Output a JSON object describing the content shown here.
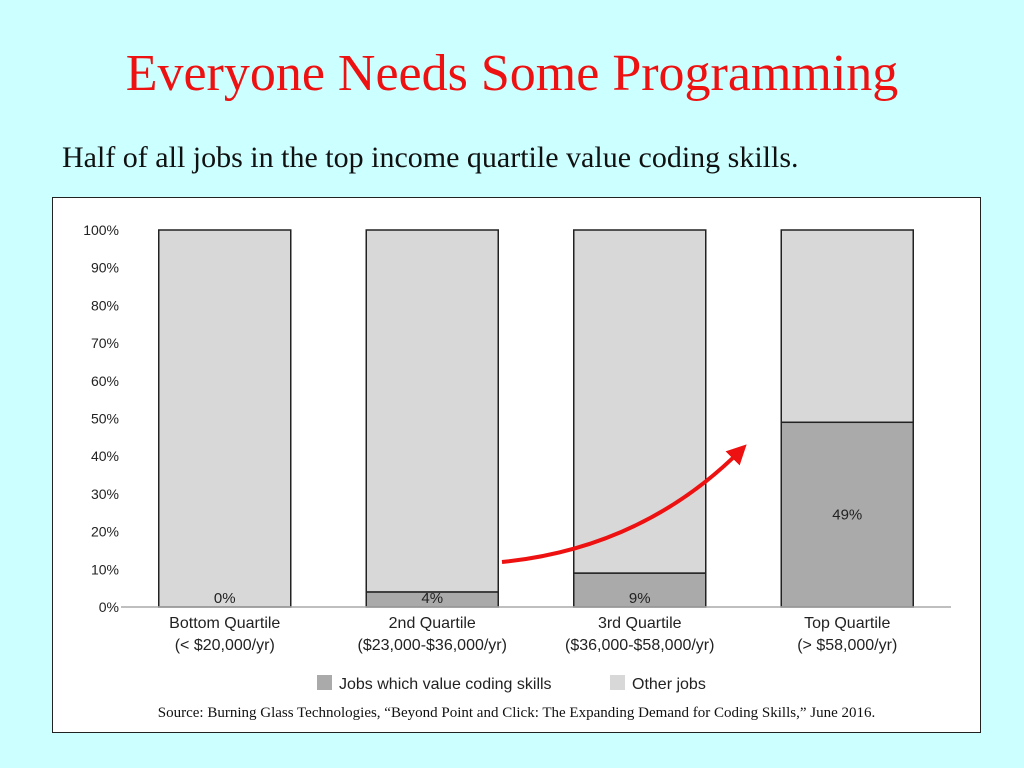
{
  "slide": {
    "title": "Everyone Needs Some Programming",
    "subtitle": "Half of all jobs in the top income quartile value coding skills.",
    "title_color": "#ee1111",
    "background_color": "#ccffff"
  },
  "figure": {
    "source": "Source: Burning Glass Technologies,  “Beyond Point and Click: The Expanding Demand for Coding Skills,” June 2016.",
    "annotation": "red curved arrow pointing from the 2nd Quartile bar toward the Top Quartile bar",
    "annotation_color": "#ee1111"
  },
  "chart_data": {
    "type": "bar",
    "stacked": true,
    "title": "",
    "xlabel": "",
    "ylabel": "",
    "ylim": [
      0,
      100
    ],
    "y_ticks": [
      "0%",
      "10%",
      "20%",
      "30%",
      "40%",
      "50%",
      "60%",
      "70%",
      "80%",
      "90%",
      "100%"
    ],
    "categories": [
      [
        "Bottom Quartile",
        "(< $20,000/yr)"
      ],
      [
        "2nd Quartile",
        "($23,000-$36,000/yr)"
      ],
      [
        "3rd Quartile",
        "($36,000-$58,000/yr)"
      ],
      [
        "Top Quartile",
        "(> $58,000/yr)"
      ]
    ],
    "series": [
      {
        "name": "Jobs which value coding skills",
        "values": [
          0,
          4,
          9,
          49
        ],
        "color": "#aaaaaa"
      },
      {
        "name": "Other jobs",
        "values": [
          100,
          96,
          91,
          51
        ],
        "color": "#d8d8d8"
      }
    ],
    "data_labels": [
      "0%",
      "4%",
      "9%",
      "49%"
    ],
    "grid": false,
    "legend_position": "bottom"
  }
}
